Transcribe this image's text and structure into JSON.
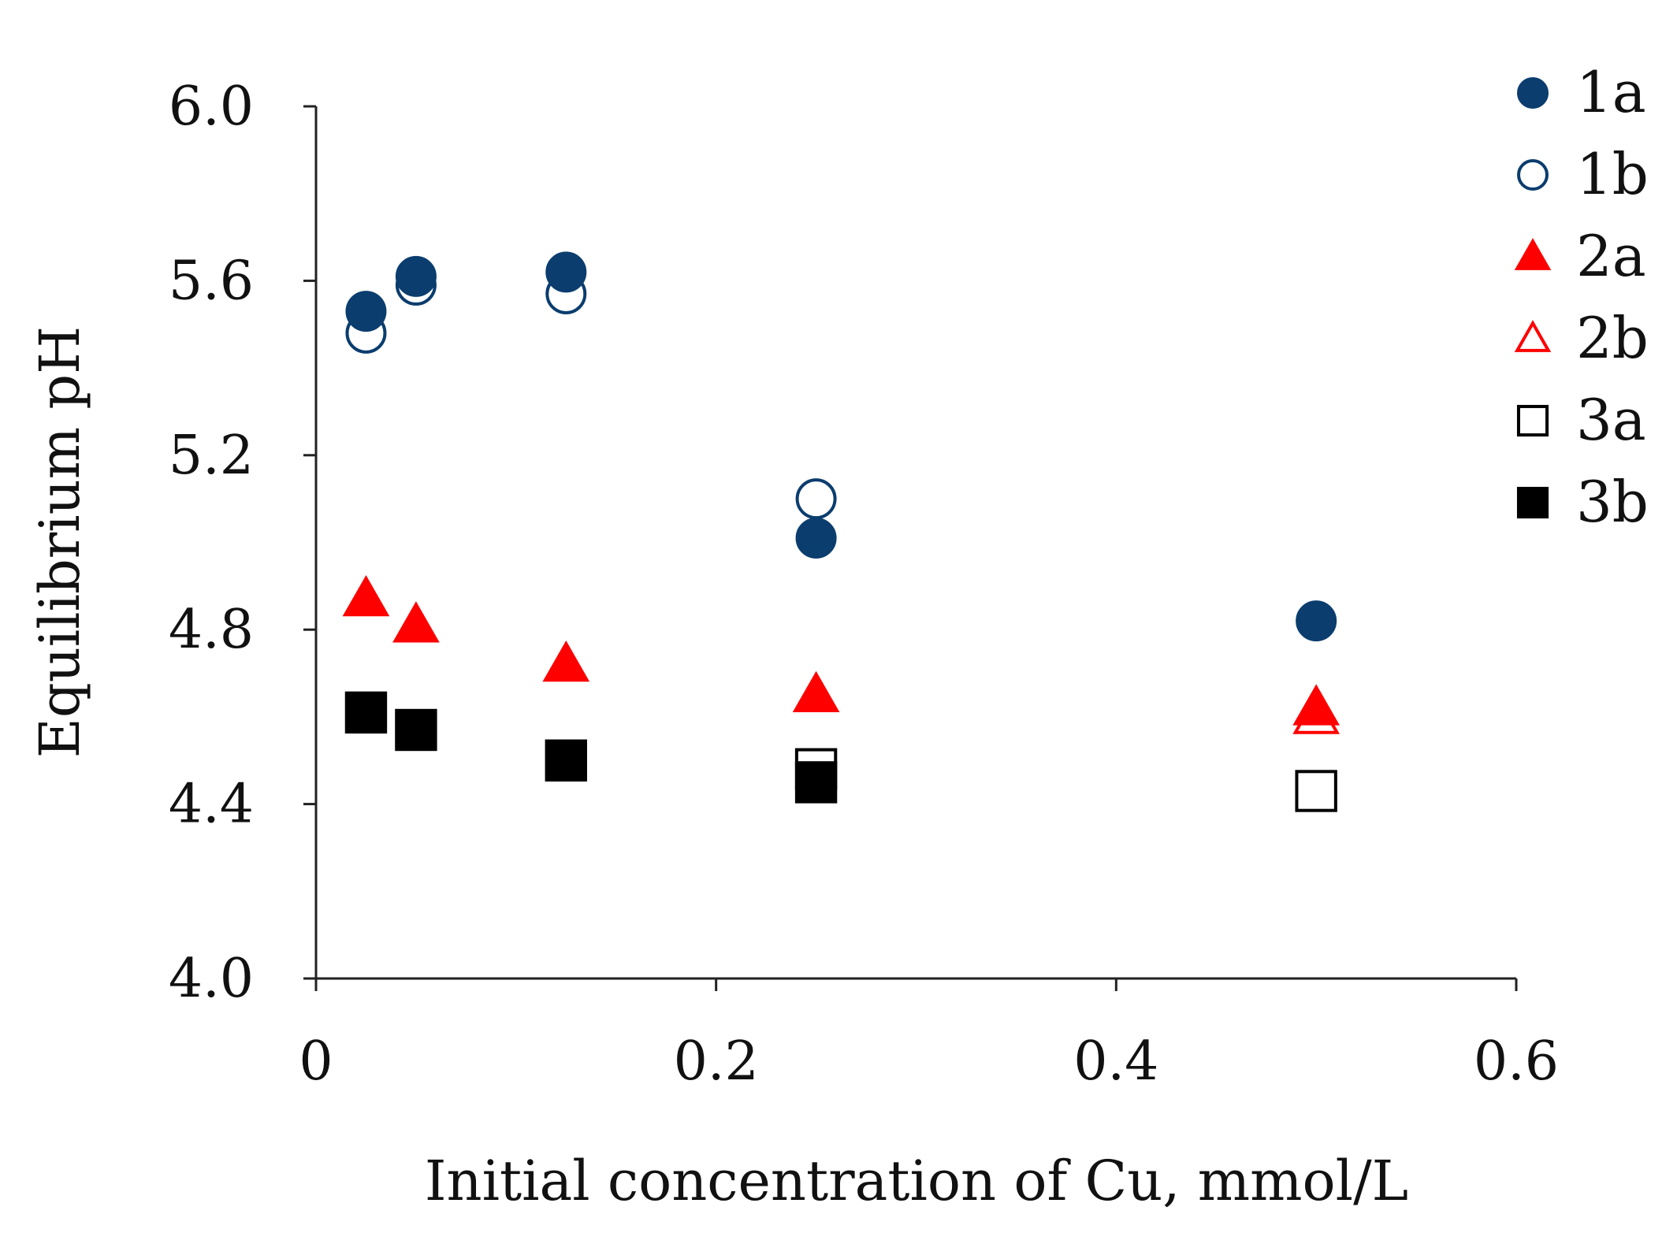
{
  "chart_data": {
    "type": "scatter",
    "title": "",
    "xlabel": "Initial concentration of Cu, mmol/L",
    "ylabel": "Equilibrium pH",
    "xlim": [
      0,
      0.6
    ],
    "ylim": [
      4.0,
      6.0
    ],
    "xticks": [
      0,
      0.2,
      0.4,
      0.6
    ],
    "xtick_labels": [
      "0",
      "0.2",
      "0.4",
      "0.6"
    ],
    "yticks": [
      4.0,
      4.4,
      4.8,
      5.2,
      5.6,
      6.0
    ],
    "ytick_labels": [
      "4.0",
      "4.4",
      "4.8",
      "5.2",
      "5.6",
      "6.0"
    ],
    "grid": false,
    "legend_position": "right",
    "series": [
      {
        "name": "1a",
        "marker": "circle",
        "filled": true,
        "color": "#0b3d6e",
        "x": [
          0.025,
          0.05,
          0.125,
          0.25,
          0.5
        ],
        "y": [
          5.53,
          5.61,
          5.62,
          5.01,
          4.82
        ]
      },
      {
        "name": "1b",
        "marker": "circle",
        "filled": false,
        "color": "#0b3d6e",
        "x": [
          0.025,
          0.05,
          0.125,
          0.25
        ],
        "y": [
          5.48,
          5.59,
          5.57,
          5.1
        ]
      },
      {
        "name": "2a",
        "marker": "triangle",
        "filled": true,
        "color": "#ff0000",
        "x": [
          0.025,
          0.05,
          0.125,
          0.25,
          0.5
        ],
        "y": [
          4.87,
          4.81,
          4.72,
          4.65,
          4.62
        ]
      },
      {
        "name": "2b",
        "marker": "triangle",
        "filled": false,
        "color": "#ff0000",
        "x": [
          0.5
        ],
        "y": [
          4.6
        ]
      },
      {
        "name": "3a",
        "marker": "square",
        "filled": false,
        "color": "#000000",
        "x": [
          0.25,
          0.5
        ],
        "y": [
          4.48,
          4.43
        ]
      },
      {
        "name": "3b",
        "marker": "square",
        "filled": true,
        "color": "#000000",
        "x": [
          0.025,
          0.05,
          0.125,
          0.25
        ],
        "y": [
          4.61,
          4.57,
          4.5,
          4.45
        ]
      }
    ]
  }
}
